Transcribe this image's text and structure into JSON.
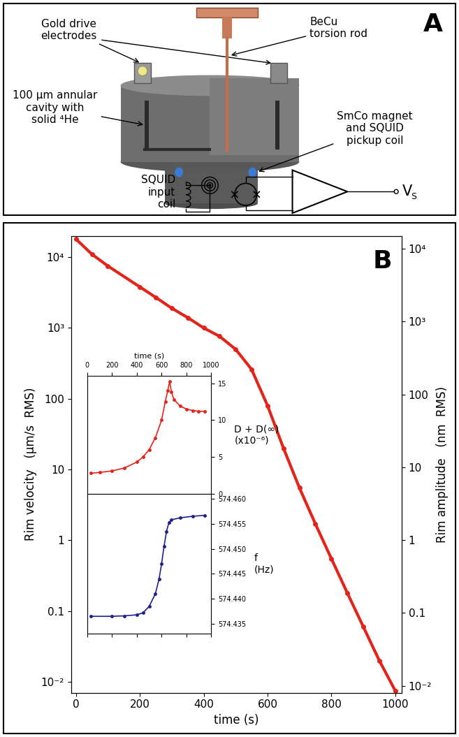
{
  "diagram": {
    "label": "A",
    "labels": {
      "electrodes": "Gold drive\nelectrodes",
      "rod": "BeCu\ntorsion rod",
      "cavity": "100 µm annular\ncavity with\nsolid ⁴He",
      "magnet": "SmCo magnet\nand SQUID\npickup coil",
      "input_coil": "SQUID\ninput\ncoil"
    },
    "output": {
      "text": "V",
      "subscript": "S"
    }
  },
  "panel_b": {
    "label": "B"
  },
  "chart_data": [
    {
      "type": "line",
      "x_label": "time (s)",
      "y_label": "Rim velocity   (µm/s  RMS)",
      "y2_label": "Rim amplitude   (nm  RMS)",
      "log": "y",
      "x": [
        0,
        50,
        100,
        200,
        250,
        300,
        350,
        400,
        450,
        500,
        550,
        600,
        650,
        700,
        750,
        800,
        850,
        900,
        950,
        1000
      ],
      "values": [
        18000,
        11000,
        7500,
        3800,
        2700,
        1900,
        1400,
        1000,
        760,
        500,
        260,
        80,
        20,
        5.5,
        1.7,
        0.55,
        0.18,
        0.06,
        0.02,
        0.0075
      ],
      "color": "#e3241b",
      "marker": "o",
      "line_style": "solid",
      "xlim": [
        -15,
        1020
      ],
      "xticks": [
        0,
        200,
        400,
        600,
        800,
        1000
      ],
      "ylim": [
        0.007,
        20000
      ],
      "yticks": [
        {
          "value": 0.01,
          "label": "10⁻²"
        },
        0.1,
        1,
        10,
        100,
        {
          "value": 1000,
          "label": "10³"
        },
        {
          "value": 10000,
          "label": "10⁴"
        }
      ],
      "y2lim": [
        0.008,
        15000
      ],
      "y2ticks": [
        {
          "value": 0.01,
          "label": "10⁻²"
        },
        0.1,
        1,
        10,
        100,
        {
          "value": 1000,
          "label": "10³"
        },
        {
          "value": 10000,
          "label": "10⁴"
        }
      ]
    },
    {
      "type": "line",
      "x_label": "time (s)",
      "y_label": "D + D(∞)\n(x10⁻⁶)",
      "x": [
        30,
        100,
        200,
        300,
        400,
        450,
        500,
        550,
        600,
        630,
        650,
        665,
        680,
        700,
        750,
        800,
        850,
        900,
        950
      ],
      "values": [
        2.8,
        2.9,
        3.1,
        3.5,
        4.3,
        5.0,
        6.0,
        7.6,
        10.0,
        12.5,
        14.0,
        15.2,
        13.8,
        12.8,
        11.9,
        11.5,
        11.3,
        11.2,
        11.2
      ],
      "color": "#e3241b",
      "marker": "o",
      "line_style": "solid",
      "xlim": [
        0,
        1000
      ],
      "xticks": [
        0,
        200,
        400,
        600,
        800,
        1000
      ],
      "ylim": [
        0,
        16
      ],
      "yticks": [
        0,
        5,
        10,
        15
      ]
    },
    {
      "type": "line",
      "y_label": "f\n(Hz)",
      "x": [
        30,
        200,
        300,
        400,
        450,
        500,
        550,
        580,
        600,
        620,
        640,
        660,
        680,
        750,
        850,
        950
      ],
      "values": [
        574.4365,
        574.4365,
        574.4366,
        574.4368,
        574.4372,
        574.4385,
        574.441,
        574.444,
        574.447,
        574.4505,
        574.4535,
        574.4553,
        574.4558,
        574.4562,
        574.4565,
        574.4567
      ],
      "color": "#1f1f8f",
      "marker": "o",
      "line_style": "solid",
      "tick_labels": "y",
      "xlim": [
        0,
        1000
      ],
      "xticks": [
        0,
        200,
        400,
        600,
        800,
        1000
      ],
      "ylim": [
        574.433,
        574.461
      ],
      "yticks": [
        574.435,
        {
          "value": 574.44,
          "label": "574.440"
        },
        574.445,
        {
          "value": 574.45,
          "label": "574.450"
        },
        574.455,
        {
          "value": 574.46,
          "label": "574.460"
        }
      ]
    }
  ]
}
